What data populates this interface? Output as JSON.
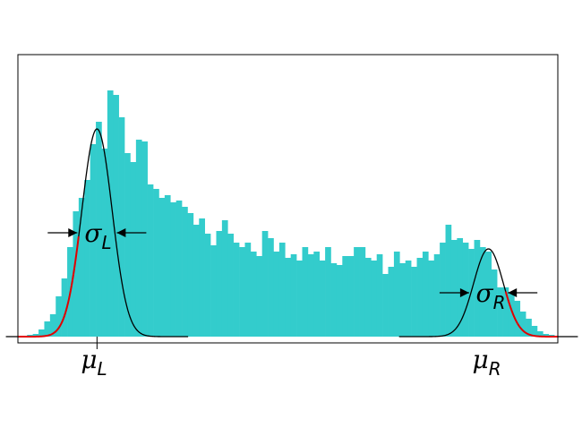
{
  "chart_data": {
    "type": "histogram",
    "bins": [
      0,
      1,
      2,
      3,
      4,
      5,
      6,
      7,
      8,
      9,
      10,
      11,
      12,
      13,
      14,
      15,
      16,
      17,
      18,
      19,
      20,
      21,
      22,
      23,
      24,
      25,
      26,
      27,
      28,
      29,
      30,
      31,
      32,
      33,
      34,
      35,
      36,
      37,
      38,
      39,
      40,
      41,
      42,
      43,
      44,
      45,
      46,
      47,
      48,
      49,
      50,
      51,
      52,
      53,
      54,
      55,
      56,
      57,
      58,
      59,
      60,
      61,
      62,
      63,
      64,
      65,
      66,
      67,
      68,
      69,
      70,
      71,
      72,
      73,
      74,
      75,
      76,
      77,
      78,
      79,
      80,
      81,
      82,
      83,
      84,
      85,
      86,
      87,
      88,
      89,
      90,
      91,
      92
    ],
    "values": [
      2,
      3,
      8,
      17,
      25,
      45,
      65,
      100,
      140,
      155,
      175,
      215,
      240,
      210,
      275,
      270,
      245,
      205,
      195,
      220,
      218,
      170,
      165,
      155,
      158,
      150,
      152,
      145,
      138,
      125,
      132,
      115,
      102,
      118,
      130,
      115,
      105,
      100,
      105,
      95,
      90,
      118,
      110,
      95,
      105,
      88,
      92,
      85,
      100,
      92,
      95,
      85,
      100,
      82,
      80,
      90,
      90,
      100,
      100,
      88,
      85,
      92,
      70,
      78,
      95,
      82,
      85,
      78,
      88,
      95,
      85,
      92,
      105,
      125,
      108,
      110,
      105,
      98,
      108,
      100,
      95,
      75,
      55,
      55,
      48,
      40,
      28,
      20,
      12,
      6,
      3,
      2
    ],
    "color": "#33cccc",
    "xlim": [
      -1.6,
      92.6
    ],
    "ylim": [
      -7,
      315
    ],
    "fit_color": "#000000",
    "tail_color": "#e00000",
    "fits": [
      {
        "mu": 12.2,
        "sigma": 2.65,
        "amplitude": 232,
        "tail": [
          -1.6,
          9
        ],
        "mu_label": {
          "symbol": "μ",
          "sub": "L"
        },
        "sigma_label": {
          "symbol": "σ",
          "sub": "L"
        }
      },
      {
        "mu": 80.5,
        "sigma": 2.6,
        "amplitude": 98,
        "tail": [
          83.5,
          92.6
        ],
        "mu_label": {
          "symbol": "μ",
          "sub": "R"
        },
        "sigma_label": {
          "symbol": "σ",
          "sub": "R"
        }
      }
    ]
  }
}
